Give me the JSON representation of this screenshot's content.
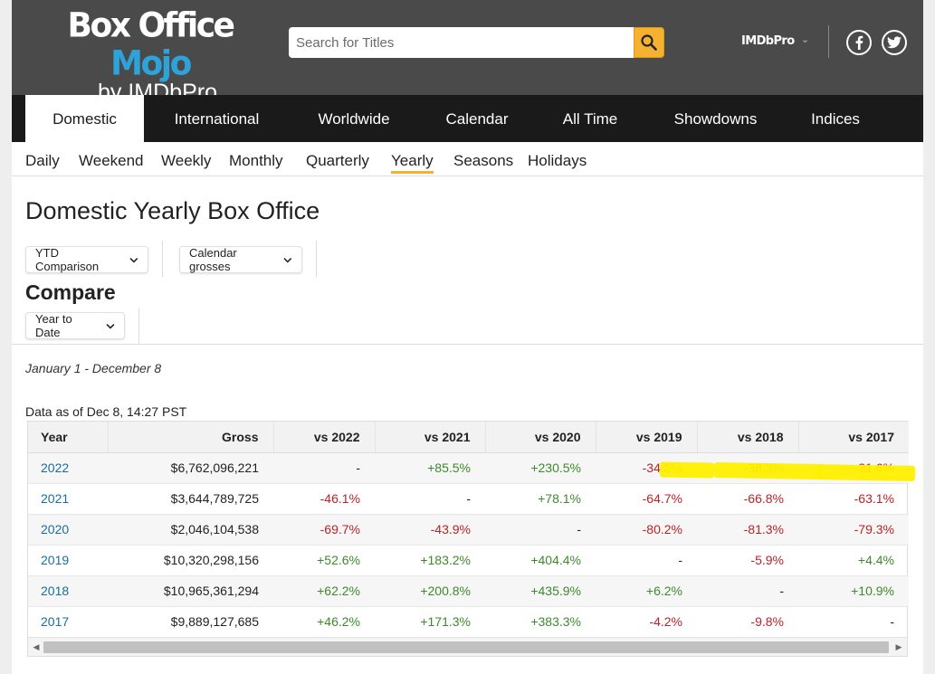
{
  "header": {
    "logo_box_office": "Box Office",
    "logo_mojo": "Mojo",
    "logo_by": "by IMDbPro",
    "search_placeholder": "Search for Titles",
    "imdbpro_label": "IMDbPro",
    "facebook_icon": "facebook-icon",
    "twitter_icon": "twitter-icon",
    "accent_color": "#f5b230"
  },
  "nav": {
    "tabs": [
      {
        "label": "Domestic",
        "active": true
      },
      {
        "label": "International",
        "active": false
      },
      {
        "label": "Worldwide",
        "active": false
      },
      {
        "label": "Calendar",
        "active": false
      },
      {
        "label": "All Time",
        "active": false
      },
      {
        "label": "Showdowns",
        "active": false
      },
      {
        "label": "Indices",
        "active": false
      }
    ]
  },
  "subnav": {
    "items": [
      {
        "label": "Daily"
      },
      {
        "label": "Weekend"
      },
      {
        "label": "Weekly"
      },
      {
        "label": "Monthly"
      },
      {
        "label": "Quarterly"
      },
      {
        "label": "Yearly",
        "active": true
      },
      {
        "label": "Seasons"
      },
      {
        "label": "Holidays"
      }
    ]
  },
  "main": {
    "title": "Domestic Yearly Box Office",
    "dropdown_comparison": "YTD Comparison",
    "dropdown_grosses": "Calendar grosses",
    "compare_title": "Compare",
    "dropdown_period": "Year to Date",
    "date_range": "January 1 - December 8",
    "as_of": "Data as of Dec 8, 14:27 PST"
  },
  "table": {
    "headers": [
      "Year",
      "Gross",
      "vs 2022",
      "vs 2021",
      "vs 2020",
      "vs 2019",
      "vs 2018",
      "vs 2017"
    ],
    "rows": [
      {
        "year": "2022",
        "gross": "$6,762,096,221",
        "vs": [
          "-",
          "+85.5%",
          "+230.5%",
          "-34.5%",
          "-38.3%",
          "-31.6%"
        ]
      },
      {
        "year": "2021",
        "gross": "$3,644,789,725",
        "vs": [
          "-46.1%",
          "-",
          "+78.1%",
          "-64.7%",
          "-66.8%",
          "-63.1%"
        ]
      },
      {
        "year": "2020",
        "gross": "$2,046,104,538",
        "vs": [
          "-69.7%",
          "-43.9%",
          "-",
          "-80.2%",
          "-81.3%",
          "-79.3%"
        ]
      },
      {
        "year": "2019",
        "gross": "$10,320,298,156",
        "vs": [
          "+52.6%",
          "+183.2%",
          "+404.4%",
          "-",
          "-5.9%",
          "+4.4%"
        ]
      },
      {
        "year": "2018",
        "gross": "$10,965,361,294",
        "vs": [
          "+62.2%",
          "+200.8%",
          "+435.9%",
          "+6.2%",
          "-",
          "+10.9%"
        ]
      },
      {
        "year": "2017",
        "gross": "$9,889,127,685",
        "vs": [
          "+46.2%",
          "+171.3%",
          "+383.3%",
          "-4.2%",
          "-9.8%",
          "-"
        ]
      }
    ],
    "positive_color": "#3d8a2b",
    "negative_color": "#b8232a",
    "highlight_color": "#ffef00"
  }
}
